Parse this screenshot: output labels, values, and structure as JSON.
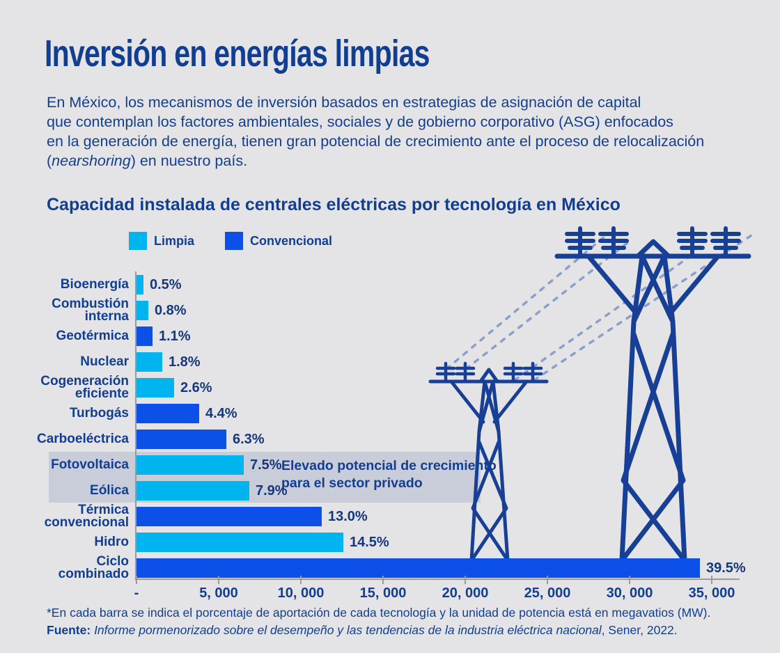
{
  "colors": {
    "background": "#e4e4e6",
    "navy": "#123e92",
    "limpia": "#00b4f0",
    "convencional": "#0c50e8",
    "band": "#c9cdda",
    "axis": "#9a9a9c",
    "dashed_line": "#8aa0cb",
    "tower": "#173f96"
  },
  "header": {
    "title": "Inversión en energías limpias",
    "intro_lines": [
      "En México, los mecanismos de inversión basados en estrategias de asignación de capital",
      "que contemplan los factores ambientales, sociales y de gobierno corporativo (ASG) enfocados",
      "en la generación de energía, tienen gran potencial de crecimiento ante el proceso de relocalización"
    ],
    "intro_last_pre": "(",
    "intro_last_italic": "nearshoring",
    "intro_last_post": ") en nuestro país."
  },
  "chart_data": {
    "type": "bar",
    "orientation": "horizontal",
    "title": "Capacidad instalada de centrales eléctricas por tecnología en México",
    "value_unit": "MW",
    "xlim": [
      0,
      35000
    ],
    "x_tick_values": [
      0,
      5000,
      10000,
      15000,
      20000,
      25000,
      30000,
      35000
    ],
    "x_tick_labels": [
      "-",
      "5, 000",
      "10, 000",
      "15, 000",
      "20, 000",
      "25, 000",
      "30, 000",
      "35, 000"
    ],
    "grid": false,
    "legend_position": "top-left",
    "legend": [
      {
        "label": "Limpia",
        "color_key": "limpia"
      },
      {
        "label": "Convencional",
        "color_key": "convencional"
      }
    ],
    "rows": [
      {
        "category": "Bioenergía",
        "label": "Bioenergía",
        "percent_label": "0.5%",
        "mw": 435,
        "series": "Limpia",
        "highlighted": false
      },
      {
        "category": "Combustión interna",
        "label": "Combustión\ninterna",
        "percent_label": "0.8%",
        "mw": 700,
        "series": "Limpia",
        "highlighted": false
      },
      {
        "category": "Geotérmica",
        "label": "Geotérmica",
        "percent_label": "1.1%",
        "mw": 960,
        "series": "Convencional",
        "highlighted": false
      },
      {
        "category": "Nuclear",
        "label": "Nuclear",
        "percent_label": "1.8%",
        "mw": 1570,
        "series": "Limpia",
        "highlighted": false
      },
      {
        "category": "Cogeneración eficiente",
        "label": "Cogeneración\neficiente",
        "percent_label": "2.6%",
        "mw": 2270,
        "series": "Limpia",
        "highlighted": false
      },
      {
        "category": "Turbogás",
        "label": "Turbogás",
        "percent_label": "4.4%",
        "mw": 3830,
        "series": "Convencional",
        "highlighted": false
      },
      {
        "category": "Carboeléctrica",
        "label": "Carboeléctrica",
        "percent_label": "6.3%",
        "mw": 5480,
        "series": "Convencional",
        "highlighted": false
      },
      {
        "category": "Fotovoltaica",
        "label": "Fotovoltaica",
        "percent_label": "7.5%",
        "mw": 6530,
        "series": "Limpia",
        "highlighted": true
      },
      {
        "category": "Eólica",
        "label": "Eólica",
        "percent_label": "7.9%",
        "mw": 6880,
        "series": "Limpia",
        "highlighted": true
      },
      {
        "category": "Térmica convencional",
        "label": "Térmica\nconvencional",
        "percent_label": "13.0%",
        "mw": 11290,
        "series": "Convencional",
        "highlighted": false
      },
      {
        "category": "Hidro",
        "label": "Hidro",
        "percent_label": "14.5%",
        "mw": 12600,
        "series": "Limpia",
        "highlighted": false
      },
      {
        "category": "Ciclo combinado",
        "label": "Ciclo\ncombinado",
        "percent_label": "39.5%",
        "mw": 34300,
        "series": "Convencional",
        "highlighted": false
      }
    ],
    "annotation": "Elevado potencial de crecimiento para el sector privado"
  },
  "footer": {
    "note": "*En cada barra se indica el porcentaje de aportación de cada tecnología y la unidad de potencia está en megavatios (MW).",
    "source_prefix": "Fuente: ",
    "source_italic": "Informe pormenorizado sobre el desempeño y las tendencias de la industria eléctrica nacional",
    "source_suffix": ", Sener, 2022."
  }
}
